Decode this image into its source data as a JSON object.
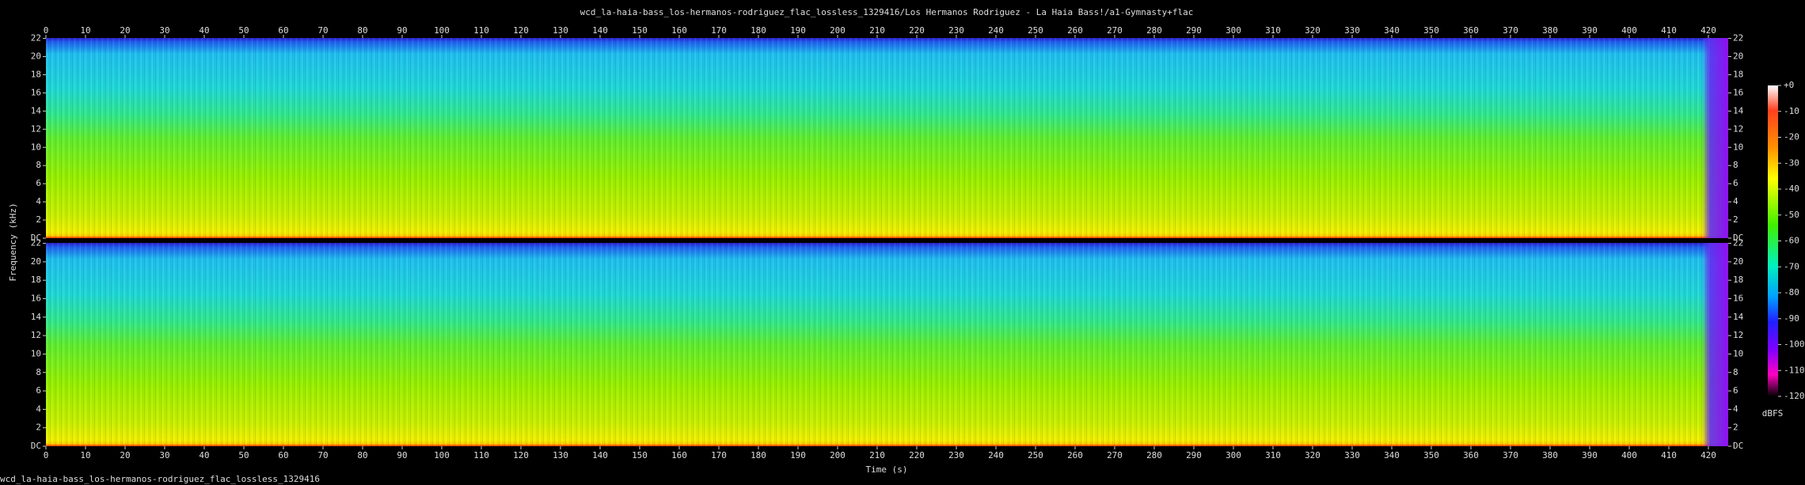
{
  "chart_data": {
    "type": "spectrogram",
    "title": "wcd_la-haia-bass_los-hermanos-rodriguez_flac_lossless_1329416/Los Hermanos Rodriguez - La Haia Bass!/a1-Gymnasty+flac",
    "xlabel": "Time (s)",
    "ylabel": "Frequency (kHz)",
    "caption": "wcd_la-haia-bass_los-hermanos-rodriguez_flac_lossless_1329416",
    "xlim": [
      0,
      425
    ],
    "xticks": [
      0,
      10,
      20,
      30,
      40,
      50,
      60,
      70,
      80,
      90,
      100,
      110,
      120,
      130,
      140,
      150,
      160,
      170,
      180,
      190,
      200,
      210,
      220,
      230,
      240,
      250,
      260,
      270,
      280,
      290,
      300,
      310,
      320,
      330,
      340,
      350,
      360,
      370,
      380,
      390,
      400,
      410,
      420
    ],
    "ylim": [
      0,
      22.05
    ],
    "yticks": [
      {
        "value": 0,
        "label": "DC"
      },
      2,
      4,
      6,
      8,
      10,
      12,
      14,
      16,
      18,
      20,
      22
    ],
    "colorbar": {
      "label": "dBFS",
      "lim": [
        -120,
        0
      ],
      "ticks": [
        {
          "value": 0,
          "label": "+0"
        },
        -10,
        -20,
        -30,
        -40,
        -50,
        -60,
        -70,
        -80,
        -90,
        -100,
        -110,
        -120
      ]
    }
  }
}
